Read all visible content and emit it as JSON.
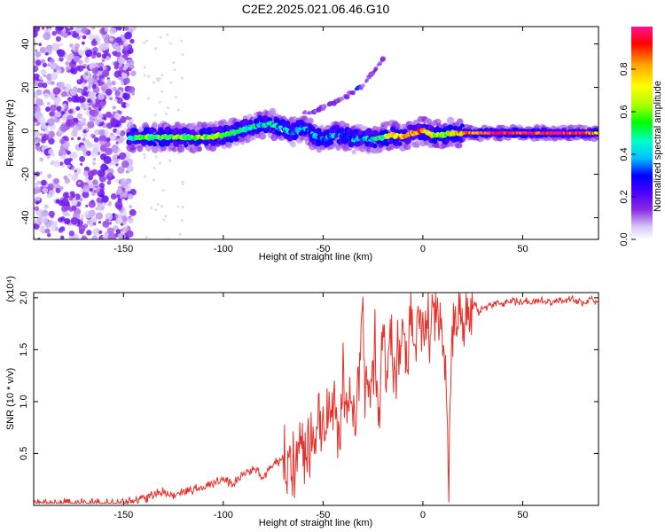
{
  "title": "C2E2.2025.021.06.46.G10",
  "chart_data": [
    {
      "type": "heatmap",
      "xlabel": "Height of straight line (km)",
      "ylabel": "Frequency (Hz)",
      "xlim": [
        -195,
        88
      ],
      "ylim": [
        -50,
        48
      ],
      "xticks": [
        -150,
        -100,
        -50,
        0,
        50
      ],
      "yticks": [
        -40,
        -20,
        0,
        20,
        40
      ],
      "colorbar": {
        "label": "Normalized spectral amplitude",
        "range": [
          0,
          1
        ],
        "ticks": [
          0.0,
          0.2,
          0.4,
          0.6,
          0.8
        ],
        "tick_labels": [
          "0.0",
          "0.2",
          "0.4",
          "0.6",
          "0.8"
        ],
        "colormap": [
          "#ffffff",
          "#d6c6f7",
          "#8a2be2",
          "#4b00ff",
          "#0000ff",
          "#00bfff",
          "#00ffcc",
          "#00ff00",
          "#aaff00",
          "#ffff00",
          "#ffa500",
          "#ff0000",
          "#ff1493"
        ]
      },
      "ridge": {
        "x": [
          -147,
          -140,
          -130,
          -120,
          -110,
          -100,
          -92,
          -85,
          -80,
          -75,
          -70,
          -65,
          -60,
          -55,
          -50,
          -45,
          -40,
          -35,
          -30,
          -25,
          -20,
          -15,
          -10,
          -5,
          0,
          5,
          10,
          15,
          20,
          30,
          40,
          50,
          60,
          70,
          80,
          88
        ],
        "y": [
          -3,
          -3,
          -3,
          -3,
          -3,
          -2,
          0,
          2,
          3,
          3,
          1,
          -1,
          2,
          -2,
          -4,
          -2,
          -2,
          -4,
          -3,
          -4,
          -3,
          -2,
          -3,
          -1,
          0,
          -2,
          -2,
          -1,
          -1,
          -1,
          -1,
          -1,
          -1,
          -1,
          -1,
          -1
        ],
        "amplitude": [
          0.5,
          0.6,
          0.6,
          0.6,
          0.65,
          0.6,
          0.55,
          0.5,
          0.45,
          0.45,
          0.4,
          0.4,
          0.35,
          0.4,
          0.3,
          0.35,
          0.3,
          0.35,
          0.4,
          0.45,
          0.55,
          0.8,
          0.85,
          0.8,
          0.85,
          0.7,
          0.65,
          0.75,
          0.8,
          0.9,
          0.95,
          0.95,
          0.95,
          0.95,
          0.95,
          0.8
        ]
      },
      "harmonic": {
        "x": [
          -60,
          -55,
          -50,
          -45,
          -40,
          -35,
          -33,
          -30,
          -25,
          -20
        ],
        "y": [
          8,
          9,
          11,
          13,
          15,
          18,
          19,
          21,
          27,
          33
        ]
      }
    },
    {
      "type": "line",
      "xlabel": "Height of straight line (km)",
      "ylabel": "SNR (10 * v/v)",
      "multiplier_label": "(x10⁴)",
      "xlim": [
        -195,
        88
      ],
      "ylim": [
        0,
        2.05
      ],
      "xticks": [
        -150,
        -100,
        -50,
        0,
        50
      ],
      "yticks": [
        0.5,
        1.0,
        1.5,
        2.0
      ],
      "ytick_labels": [
        "0.5",
        "1.0",
        "1.5",
        "2.0"
      ],
      "color": "#e8302a",
      "series": [
        {
          "x": [
            -195,
            -185,
            -175,
            -165,
            -155,
            -145,
            -140,
            -135,
            -130,
            -125,
            -120,
            -115,
            -110,
            -105,
            -100,
            -95,
            -90,
            -85,
            -80,
            -75,
            -70,
            -65,
            -60,
            -55,
            -52,
            -50,
            -48,
            -45,
            -42,
            -40,
            -38,
            -36,
            -34,
            -32,
            -30,
            -29,
            -28,
            -26,
            -24,
            -22,
            -20,
            -18,
            -16,
            -14,
            -12,
            -10,
            -8,
            -6,
            -4,
            -2,
            0,
            2,
            4,
            6,
            8,
            10,
            12,
            13,
            14,
            16,
            18,
            20,
            22,
            24,
            26,
            28,
            30,
            35,
            40,
            45,
            50,
            55,
            60,
            65,
            70,
            75,
            80,
            85,
            88
          ],
          "y": [
            0.02,
            0.02,
            0.02,
            0.02,
            0.02,
            0.04,
            0.06,
            0.1,
            0.14,
            0.1,
            0.12,
            0.15,
            0.18,
            0.22,
            0.25,
            0.2,
            0.3,
            0.35,
            0.28,
            0.4,
            0.45,
            0.38,
            0.52,
            0.6,
            0.75,
            0.65,
            0.9,
            1.05,
            0.55,
            1.3,
            0.85,
            1.2,
            0.7,
            1.35,
            1.95,
            0.9,
            1.45,
            1.05,
            1.55,
            0.8,
            1.65,
            1.1,
            1.75,
            1.2,
            1.6,
            1.8,
            1.35,
            1.9,
            1.5,
            1.95,
            1.7,
            1.8,
            1.6,
            1.9,
            1.75,
            1.55,
            0.95,
            0.3,
            1.4,
            1.8,
            1.85,
            1.7,
            1.9,
            1.8,
            1.95,
            1.85,
            1.9,
            1.93,
            1.95,
            1.96,
            1.97,
            1.96,
            1.97,
            1.95,
            1.97,
            1.98,
            1.96,
            1.98,
            1.97
          ]
        }
      ]
    }
  ]
}
